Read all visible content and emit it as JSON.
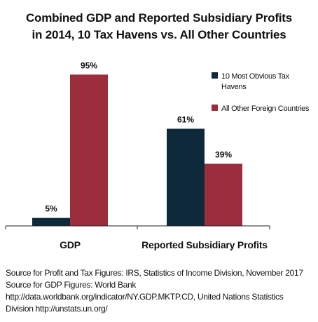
{
  "chart_data": {
    "type": "bar",
    "title_lines": [
      "Combined GDP and Reported Subsidiary Profits",
      "in 2014, 10 Tax Havens vs. All Other Countries"
    ],
    "categories": [
      "GDP",
      "Reported Subsidiary Profits"
    ],
    "series": [
      {
        "name_lines": [
          "10 Most Obvious Tax",
          "Havens"
        ],
        "values": [
          5,
          61
        ],
        "labels": [
          "5%",
          "61%"
        ],
        "color": "#0e2a3a"
      },
      {
        "name_lines": [
          "All Other Foreign Countries"
        ],
        "values": [
          95,
          39
        ],
        "labels": [
          "95%",
          "39%"
        ],
        "color": "#9b2d3c"
      }
    ],
    "ylim": [
      0,
      100
    ],
    "legend_position": "top-right",
    "grid": false
  },
  "footnotes": [
    "Source for Profit and Tax Figures: IRS, Statistics of Income Division, November 2017",
    "Source for GDP Figures: World Bank",
    "http://data.worldbank.org/indicator/NY.GDP.MKTP.CD, United Nations Statistics",
    " Division http://unstats.un.org/"
  ]
}
